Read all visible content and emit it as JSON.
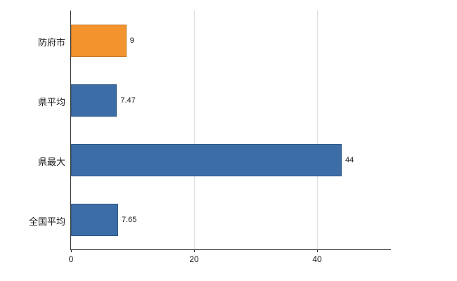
{
  "chart_data": {
    "type": "bar",
    "orientation": "horizontal",
    "title": "",
    "xlabel": "",
    "ylabel": "",
    "categories": [
      "防府市",
      "県平均",
      "県最大",
      "全国平均"
    ],
    "values": [
      9,
      7.47,
      44,
      7.65
    ],
    "value_labels": [
      "9",
      "7.47",
      "44",
      "7.65"
    ],
    "bar_colors": [
      "#F2932E",
      "#3C6DA6",
      "#3C6DA6",
      "#3C6DA6"
    ],
    "xlim": [
      0,
      52
    ],
    "x_ticks": [
      0,
      20,
      40
    ],
    "grid": "vertical",
    "legend": "none"
  },
  "colors": {
    "axis": "#2b2b2b",
    "gridline": "#dcdcdc",
    "text": "#1a1a1a",
    "background": "#ffffff",
    "highlight_bar": "#F2932E",
    "default_bar": "#3C6DA6"
  }
}
